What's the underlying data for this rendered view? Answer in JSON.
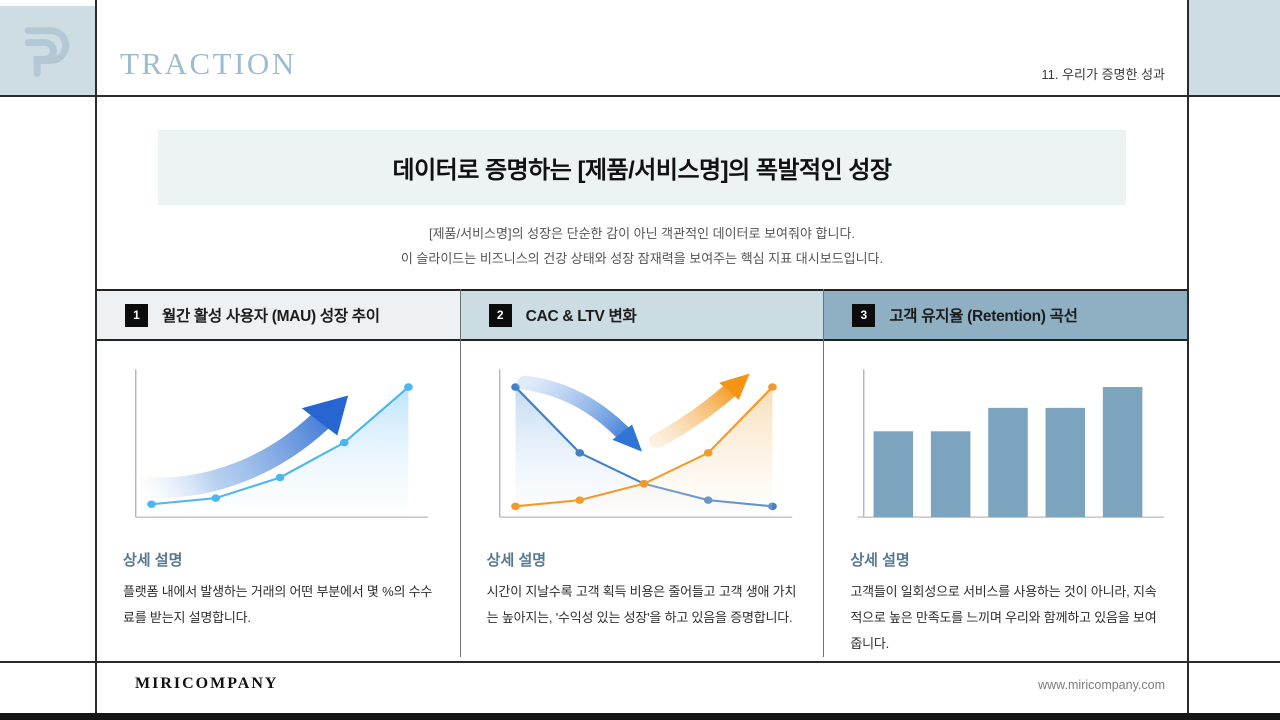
{
  "header": {
    "title": "TRACTION",
    "page_label": "11. 우리가 증명한 성과"
  },
  "hero": {
    "title": "데이터로 증명하는 [제품/서비스명]의 폭발적인 성장",
    "subtitle_lines": [
      "[제품/서비스명]의 성장은 단순한 감이 아닌 객관적인 데이터로 보여줘야 합니다.",
      "이 슬라이드는 비즈니스의 건강 상태와 성장 잠재력을 보여주는 핵심 지표 대시보드입니다."
    ]
  },
  "panels": [
    {
      "number": "1",
      "title": "월간 활성 사용자 (MAU) 성장 추이",
      "header_bg": "#eef1f3",
      "detail_heading": "상세 설명",
      "description": "플랫폼 내에서 발생하는 거래의 어떤 부분에서 몇 %의 수수료를 받는지 설명합니다."
    },
    {
      "number": "2",
      "title": "CAC & LTV 변화",
      "header_bg": "#ccdce3",
      "detail_heading": "상세 설명",
      "description": "시간이 지날수록 고객 획득 비용은 줄어들고 고객 생애 가치는 높아지는, '수익성 있는 성장'을 하고 있음을 증명합니다."
    },
    {
      "number": "3",
      "title": "고객 유지율 (Retention) 곡선",
      "header_bg": "#8fb0c3",
      "detail_heading": "상세 설명",
      "description": "고객들이 일회성으로 서비스를 사용하는 것이 아니라, 지속적으로 높은 만족도를 느끼며 우리와 함께하고 있음을 보여줍니다."
    }
  ],
  "footer": {
    "company": "MIRICOMPANY",
    "website": "www.miricompany.com"
  },
  "colors": {
    "accent_box": "#cddde3",
    "traction_text": "#9cbcd1",
    "detail_heading": "#57798f",
    "bar_fill": "#7da4bf",
    "line_blue_light": "#4cb6f0",
    "line_blue": "#4180c6",
    "line_orange": "#f49a2a"
  },
  "chart_data": [
    {
      "panel": "월간 활성 사용자 (MAU) 성장 추이",
      "type": "line",
      "x": [
        1,
        2,
        3,
        4,
        5
      ],
      "series": [
        {
          "name": "MAU",
          "values": [
            5,
            8,
            18,
            35,
            62
          ],
          "color": "#4cb6f0"
        }
      ],
      "title": "",
      "xlabel": "",
      "ylabel": "",
      "axis_labels_visible": false,
      "annotations": "large blue upward curved arrow overlay; light-blue area fill under exponential growth line"
    },
    {
      "panel": "CAC & LTV 변화",
      "type": "line",
      "x": [
        1,
        2,
        3,
        4,
        5
      ],
      "series": [
        {
          "name": "CAC",
          "values": [
            62,
            30,
            15,
            7,
            4
          ],
          "color": "#4180c6"
        },
        {
          "name": "LTV",
          "values": [
            4,
            7,
            15,
            30,
            62
          ],
          "color": "#f49a2a"
        }
      ],
      "title": "",
      "xlabel": "",
      "ylabel": "",
      "axis_labels_visible": false,
      "annotations": "blue arrow curving down-right and orange arrow curving up-right; lines cross at middle point; gradient area fills"
    },
    {
      "panel": "고객 유지율 (Retention) 곡선",
      "type": "bar",
      "categories": [
        "1",
        "2",
        "3",
        "4",
        "5"
      ],
      "values": [
        66,
        66,
        84,
        84,
        100
      ],
      "color": "#7da4bf",
      "title": "",
      "xlabel": "",
      "ylabel": "",
      "axis_labels_visible": false
    }
  ]
}
